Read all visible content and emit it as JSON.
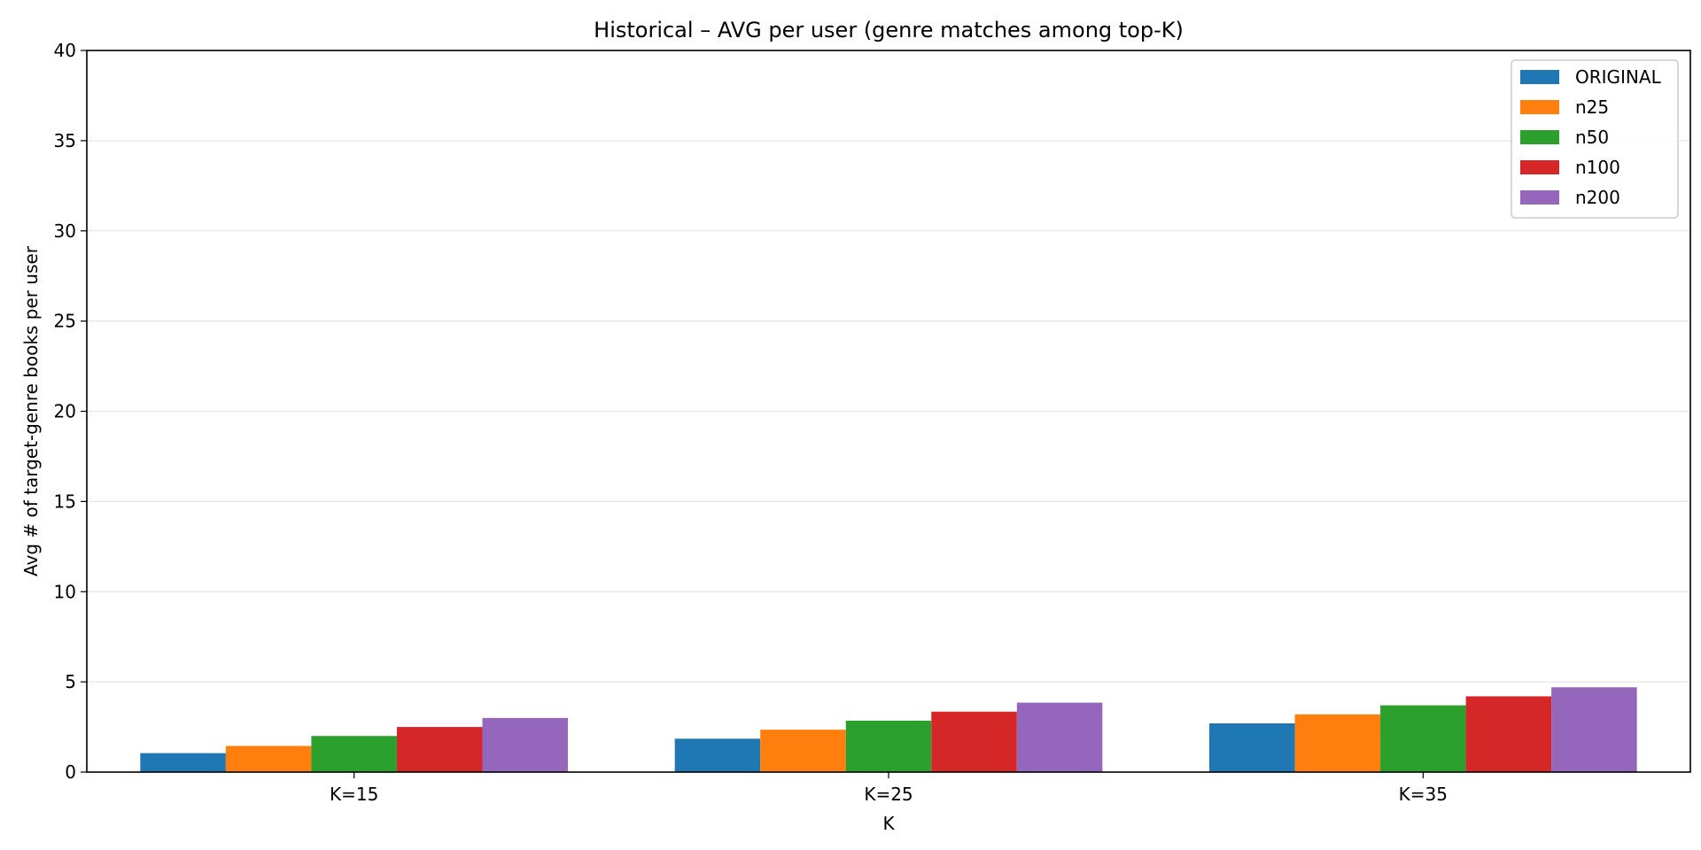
{
  "chart_data": {
    "type": "bar",
    "title": "Historical – AVG per user (genre matches among top-K)",
    "xlabel": "K",
    "ylabel": "Avg # of target-genre books per user",
    "categories": [
      "K=15",
      "K=25",
      "K=35"
    ],
    "ylim": [
      0,
      40
    ],
    "yticks": [
      0,
      5,
      10,
      15,
      20,
      25,
      30,
      35,
      40
    ],
    "grid": "y",
    "legend_position": "top-right",
    "series": [
      {
        "name": "ORIGINAL",
        "color": "#1f77b4",
        "values": [
          1.05,
          1.85,
          2.7
        ]
      },
      {
        "name": "n25",
        "color": "#ff7f0e",
        "values": [
          1.45,
          2.35,
          3.2
        ]
      },
      {
        "name": "n50",
        "color": "#2ca02c",
        "values": [
          2.0,
          2.85,
          3.7
        ]
      },
      {
        "name": "n100",
        "color": "#d62728",
        "values": [
          2.5,
          3.35,
          4.2
        ]
      },
      {
        "name": "n200",
        "color": "#9467bd",
        "values": [
          3.0,
          3.85,
          4.7
        ]
      }
    ]
  }
}
